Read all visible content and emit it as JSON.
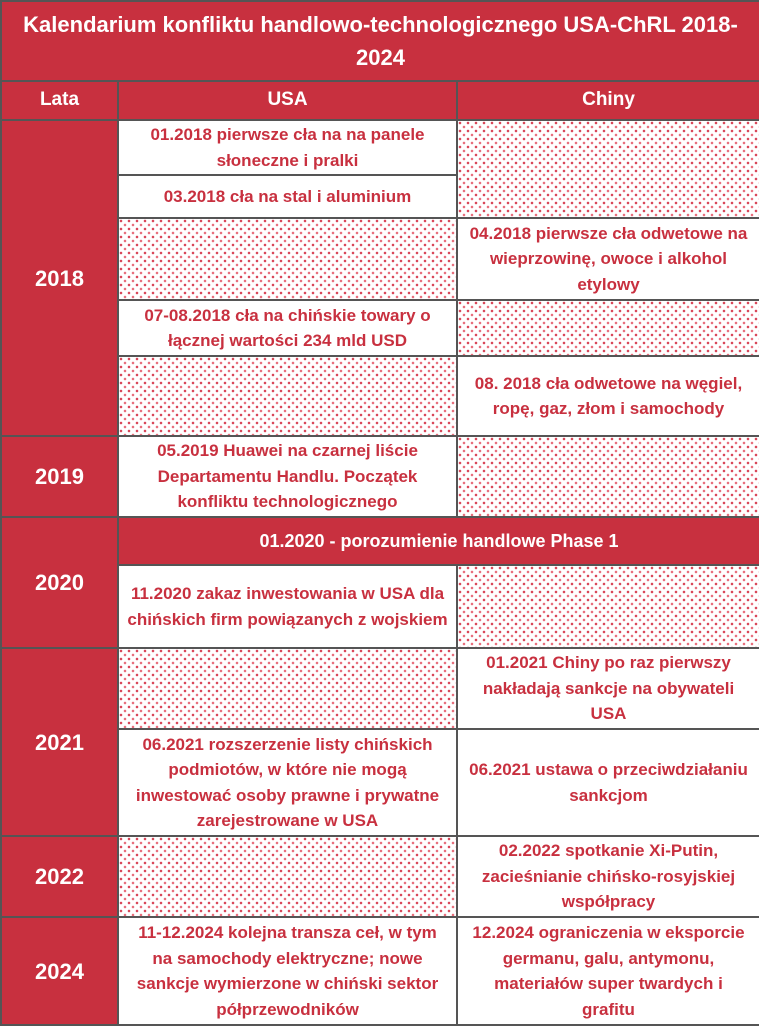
{
  "title": "Kalendarium konfliktu handlowo-technologicznego USA-ChRL 2018-2024",
  "headers": {
    "years": "Lata",
    "usa": "USA",
    "china": "Chiny"
  },
  "years": {
    "y2018": "2018",
    "y2019": "2019",
    "y2020": "2020",
    "y2021": "2021",
    "y2022": "2022",
    "y2024": "2024"
  },
  "events": {
    "usa_2018_01": "01.2018 pierwsze cła na na panele słoneczne i pralki",
    "usa_2018_03": "03.2018 cła na stal i aluminium",
    "cn_2018_04": "04.2018 pierwsze cła odwetowe na wieprzowinę, owoce i alkohol etylowy",
    "usa_2018_07": "07-08.2018 cła na chińskie towary o łącznej wartości 234 mld USD",
    "cn_2018_08": "08. 2018 cła odwetowe na węgiel, ropę, gaz, złom i samochody",
    "usa_2019_05": "05.2019 Huawei na czarnej liście Departamentu Handlu. Początek konfliktu technologicznego",
    "both_2020_01": "01.2020 - porozumienie handlowe Phase 1",
    "usa_2020_11": "11.2020 zakaz inwestowania w USA dla chińskich firm powiązanych z wojskiem",
    "cn_2021_01": "01.2021 Chiny po raz pierwszy nakładają sankcje na obywateli USA",
    "usa_2021_06": "06.2021 rozszerzenie listy chińskich podmiotów, w które nie mogą inwestować osoby prawne i prywatne zarejestrowane w USA",
    "cn_2021_06": "06.2021 ustawa o przeciwdziałaniu sankcjom",
    "cn_2022_02": "02.2022 spotkanie Xi-Putin, zacieśnianie chińsko-rosyjskiej współpracy",
    "usa_2024_11": "11-12.2024 kolejna transza ceł, w tym na samochody elektryczne; nowe sankcje wymierzone w chiński sektor półprzewodników",
    "cn_2024_12": "12.2024 ograniczenia w eksporcie germanu, galu, antymonu, materiałów super twardych i grafitu"
  },
  "colors": {
    "header_bg": "#c8303f",
    "event_text": "#c8303f",
    "pattern": "#d9485a",
    "border": "#555555"
  }
}
